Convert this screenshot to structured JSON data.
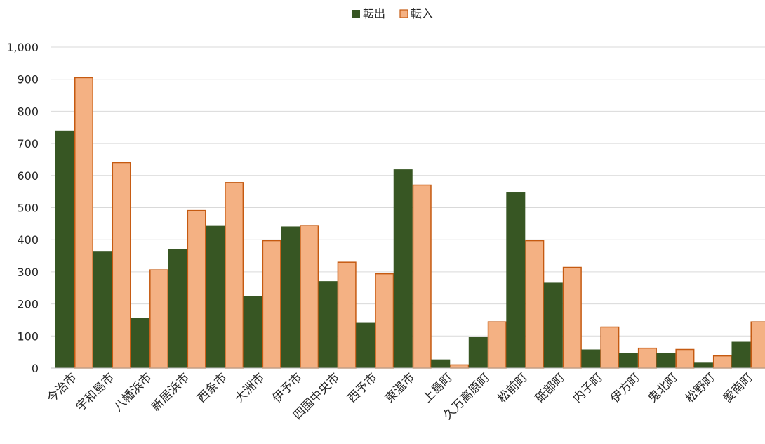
{
  "chart_data": {
    "type": "bar",
    "title": "",
    "xlabel": "",
    "ylabel": "",
    "ylim": [
      0,
      1000
    ],
    "yticks": [
      0,
      100,
      200,
      300,
      400,
      500,
      600,
      700,
      800,
      900,
      1000
    ],
    "ytick_labels": [
      "0",
      "100",
      "200",
      "300",
      "400",
      "500",
      "600",
      "700",
      "800",
      "900",
      "1,000"
    ],
    "grid": true,
    "legend_position": "top-center",
    "categories": [
      "今治市",
      "宇和島市",
      "八幡浜市",
      "新居浜市",
      "西条市",
      "大洲市",
      "伊予市",
      "四国中央市",
      "西予市",
      "東温市",
      "上島町",
      "久万高原町",
      "松前町",
      "砥部町",
      "内子町",
      "伊方町",
      "鬼北町",
      "松野町",
      "愛南町"
    ],
    "series": [
      {
        "name": "転出",
        "color": "#375623",
        "values": [
          740,
          365,
          157,
          370,
          445,
          224,
          441,
          271,
          141,
          619,
          27,
          98,
          547,
          266,
          58,
          47,
          47,
          19,
          82
        ]
      },
      {
        "name": "転入",
        "color": "#F4B183",
        "edge": "#C55A11",
        "values": [
          905,
          640,
          306,
          491,
          578,
          397,
          444,
          330,
          294,
          570,
          10,
          144,
          397,
          314,
          128,
          62,
          58,
          38,
          144
        ]
      }
    ]
  }
}
